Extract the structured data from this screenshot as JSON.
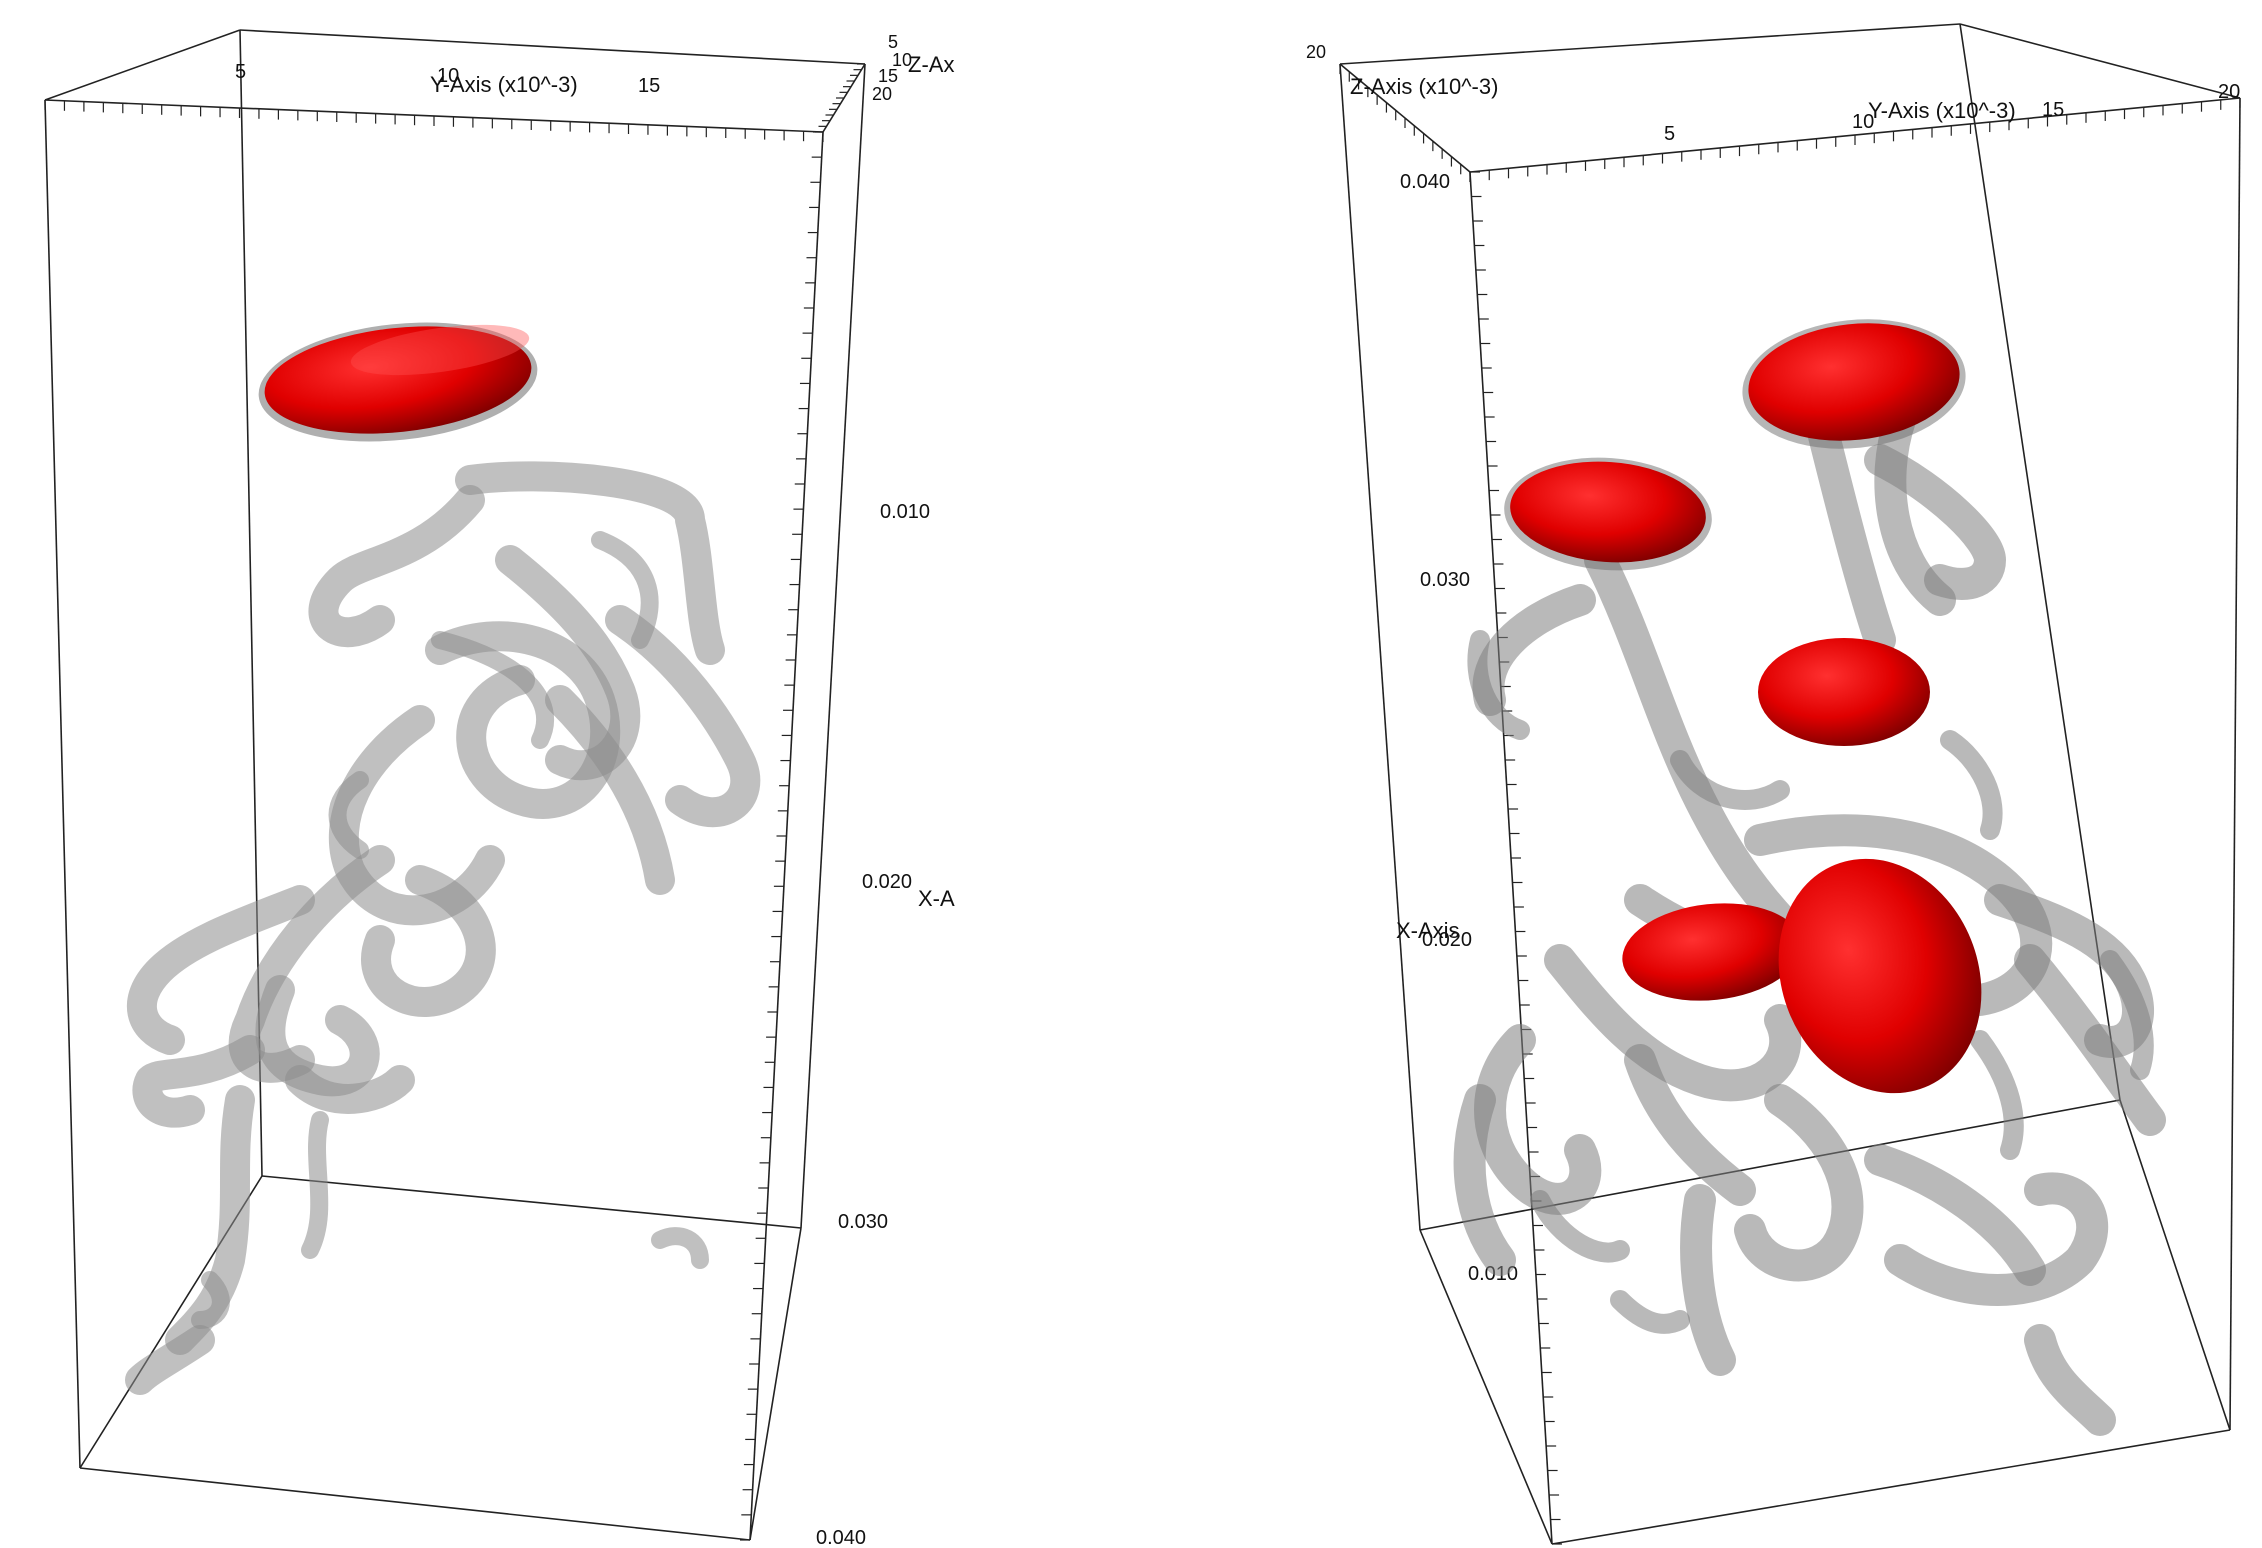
{
  "panels": [
    {
      "y_axis": {
        "title": "Y-Axis (x10^-3)",
        "ticks": [
          "5",
          "10",
          "15"
        ]
      },
      "z_axis": {
        "title": "Z-Ax",
        "ticks": [
          "5",
          "10",
          "15",
          "20"
        ]
      },
      "x_axis": {
        "title": "X-A",
        "ticks": [
          "0.010",
          "0.020",
          "0.030",
          "0.040"
        ]
      },
      "isosurface_colors": {
        "vortex_tubes": "#8c8c8c",
        "droplets": "#e00000"
      }
    },
    {
      "z_axis": {
        "title": "Z-Axis (x10^-3)",
        "ticks": [
          "20"
        ]
      },
      "y_axis": {
        "title": "Y-Axis (x10^-3)",
        "ticks": [
          "5",
          "10",
          "15",
          "20"
        ]
      },
      "x_axis": {
        "title": "X-Axis",
        "ticks": [
          "0.040",
          "0.030",
          "0.020",
          "0.010"
        ]
      },
      "isosurface_colors": {
        "vortex_tubes": "#8c8c8c",
        "droplets": "#e00000"
      }
    }
  ]
}
